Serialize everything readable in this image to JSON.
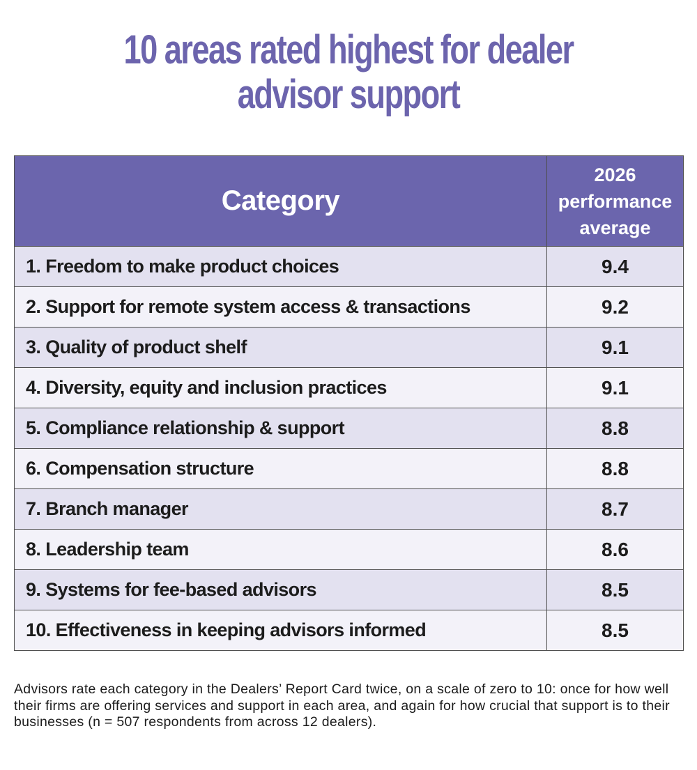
{
  "title": {
    "line1": "10 areas rated highest for dealer",
    "line2": "advisor support"
  },
  "table": {
    "header_category": "Category",
    "header_perf": [
      "2026",
      "performance",
      "average"
    ]
  },
  "chart_data": {
    "type": "table",
    "title": "10 areas rated highest for dealer advisor support",
    "columns": [
      "Category",
      "2026 performance average"
    ],
    "rows": [
      {
        "category": "1.  Freedom to make product choices",
        "value": "9.4"
      },
      {
        "category": "2. Support for remote system access & transactions",
        "value": "9.2"
      },
      {
        "category": "3. Quality of product shelf",
        "value": "9.1"
      },
      {
        "category": "4. Diversity, equity and inclusion practices",
        "value": "9.1"
      },
      {
        "category": "5. Compliance relationship & support",
        "value": "8.8"
      },
      {
        "category": "6. Compensation structure",
        "value": "8.8"
      },
      {
        "category": "7. Branch manager",
        "value": "8.7"
      },
      {
        "category": "8. Leadership team",
        "value": "8.6"
      },
      {
        "category": "9. Systems for fee-based advisors",
        "value": "8.5"
      },
      {
        "category": "10. Effectiveness in keeping advisors informed",
        "value": "8.5"
      }
    ]
  },
  "footnote": "Advisors rate each category in the Dealers’ Report Card twice, on a scale of zero to 10: once for how well their firms are offering services and support in each area, and again for how crucial that support is to their businesses (n = 507 respondents from across 12 dealers).",
  "colors": {
    "accent": "#6b65ad",
    "row_odd": "#e3e1f0",
    "row_even": "#f3f2f9"
  }
}
